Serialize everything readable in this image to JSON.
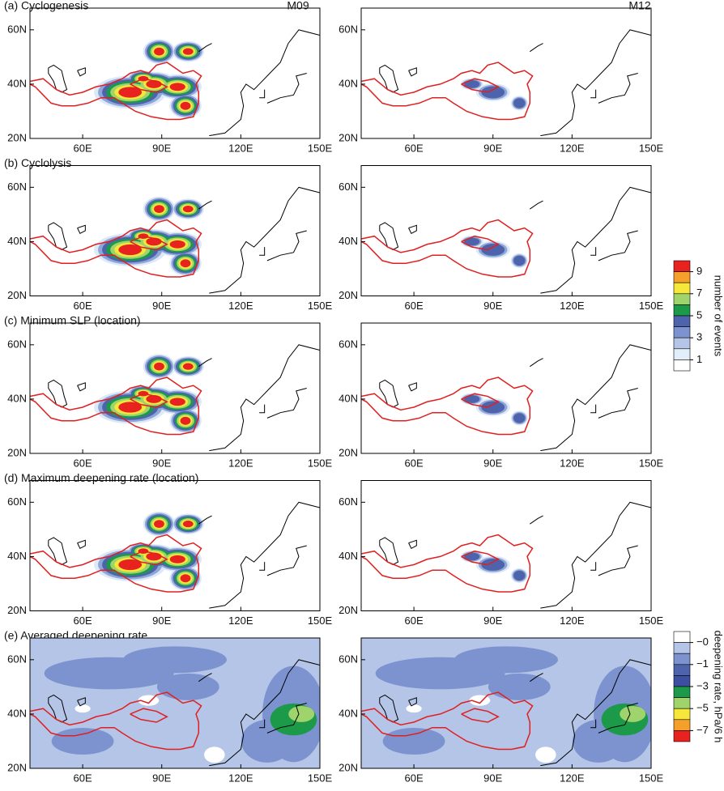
{
  "columns": [
    "M09",
    "M12"
  ],
  "panels": [
    {
      "label": "(a) Cyclogenesis"
    },
    {
      "label": "(b) Cyclolysis"
    },
    {
      "label": "(c) Minimum SLP (location)"
    },
    {
      "label": "(d) Maximum deepening rate (location)"
    },
    {
      "label": "(e) Averaged deepening rate"
    }
  ],
  "xlim": [
    40,
    150
  ],
  "ylim": [
    20,
    68
  ],
  "xticks": [
    {
      "value": 60,
      "label": "60E"
    },
    {
      "value": 90,
      "label": "90E"
    },
    {
      "value": 120,
      "label": "120E"
    },
    {
      "value": 150,
      "label": "150E"
    }
  ],
  "yticks": [
    {
      "value": 20,
      "label": "20N"
    },
    {
      "value": 40,
      "label": "40N"
    },
    {
      "value": 60,
      "label": "60N"
    }
  ],
  "colorbars": [
    {
      "label": "number of events",
      "colors": [
        "#e8231f",
        "#f6a02c",
        "#f5e83a",
        "#9fd36b",
        "#1c9a4a",
        "#4d64ad",
        "#7d93cf",
        "#b4c5e8",
        "#e2eef9",
        "#ffffff"
      ],
      "ticks": [
        9,
        7,
        5,
        3,
        1
      ]
    },
    {
      "label": "deepening rate, hPa/6 h",
      "colors": [
        "#ffffff",
        "#b4c5e8",
        "#7d93cf",
        "#4d64ad",
        "#3c4fa0",
        "#1c9a4a",
        "#9fd36b",
        "#f5e83a",
        "#f6a02c",
        "#e8231f"
      ],
      "ticks": [
        {
          "value": 0,
          "label": "−0"
        },
        {
          "value": -1,
          "label": "−1"
        },
        {
          "value": -3,
          "label": "−3"
        },
        {
          "value": -5,
          "label": "−5"
        },
        {
          "value": -7,
          "label": "−7"
        }
      ]
    }
  ]
}
